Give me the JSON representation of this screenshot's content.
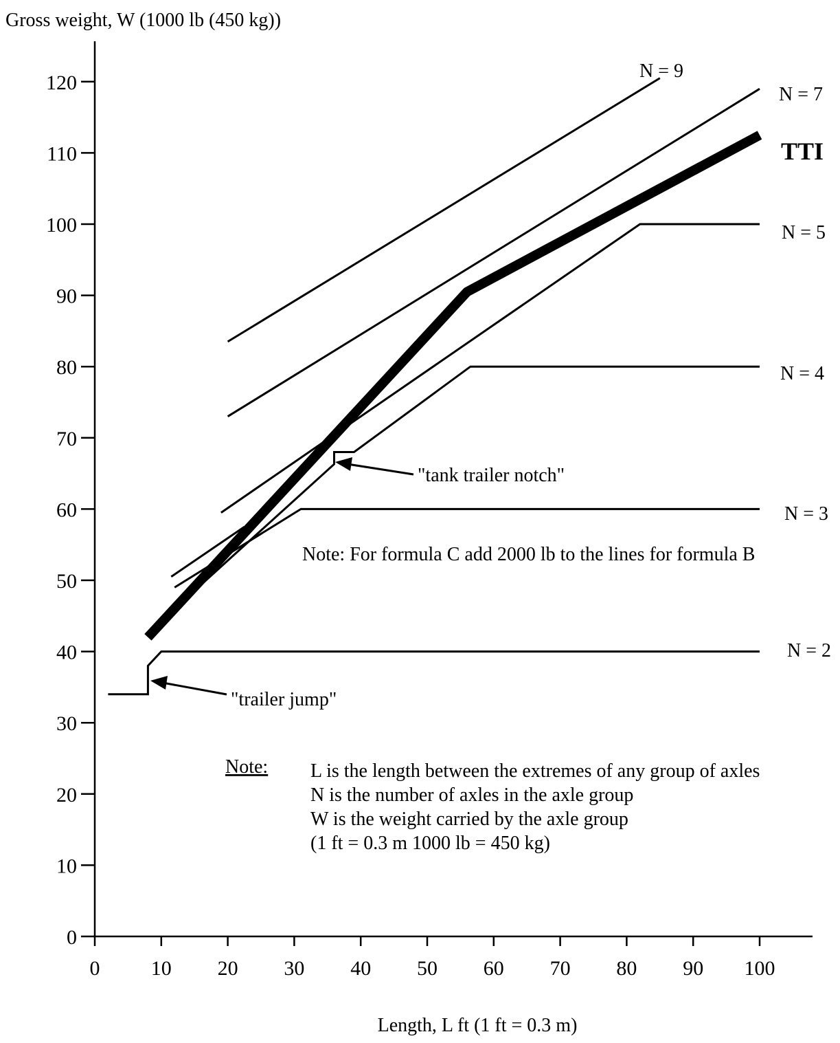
{
  "chart_data": {
    "type": "line",
    "ylabel": "Gross weight, W (1000 lb (450 kg))",
    "xlabel": "Length, L ft (1 ft = 0.3 m)",
    "xlim": [
      0,
      105
    ],
    "ylim": [
      0,
      125
    ],
    "x_ticks": [
      0,
      10,
      20,
      30,
      40,
      50,
      60,
      70,
      80,
      90,
      100
    ],
    "y_ticks": [
      0,
      10,
      20,
      30,
      40,
      50,
      60,
      70,
      80,
      90,
      100,
      110,
      120
    ],
    "grid": false,
    "series": [
      {
        "name": "N = 2",
        "x": [
          2,
          8,
          8,
          10,
          100
        ],
        "y": [
          34,
          34,
          38,
          40,
          40
        ]
      },
      {
        "name": "N = 3",
        "x": [
          12,
          31,
          100
        ],
        "y": [
          49,
          60,
          60
        ]
      },
      {
        "name": "N = 4",
        "x": [
          12,
          36,
          36,
          39,
          56.5,
          100
        ],
        "y": [
          46,
          66.3,
          68,
          68,
          80,
          80
        ]
      },
      {
        "name": "N = 5",
        "x": [
          19,
          82,
          100
        ],
        "y": [
          59.5,
          100,
          100
        ]
      },
      {
        "name": "N = 7",
        "x": [
          20,
          100
        ],
        "y": [
          73,
          119
        ]
      },
      {
        "name": "N = 9",
        "x": [
          20,
          85
        ],
        "y": [
          83.5,
          120.5
        ]
      },
      {
        "name": "TTI",
        "x": [
          8,
          56,
          100
        ],
        "y": [
          42,
          90.5,
          112.5
        ]
      },
      {
        "name": "",
        "x": [
          11.5,
          22.5
        ],
        "y": [
          50.5,
          57.5
        ]
      }
    ],
    "annotations": {
      "tank_notch": "\"tank trailer notch\"",
      "trailer_jump": "\"trailer jump\"",
      "formula_note": "Note: For formula C add 2000 lb to the lines for formula B",
      "note_heading": "Note:",
      "note_lines": [
        "L is the length between the extremes of any group of axles",
        "N is the number of axles in the axle group",
        "W is the weight carried by the axle group",
        "(1 ft = 0.3 m  1000 lb = 450 kg)"
      ]
    }
  }
}
